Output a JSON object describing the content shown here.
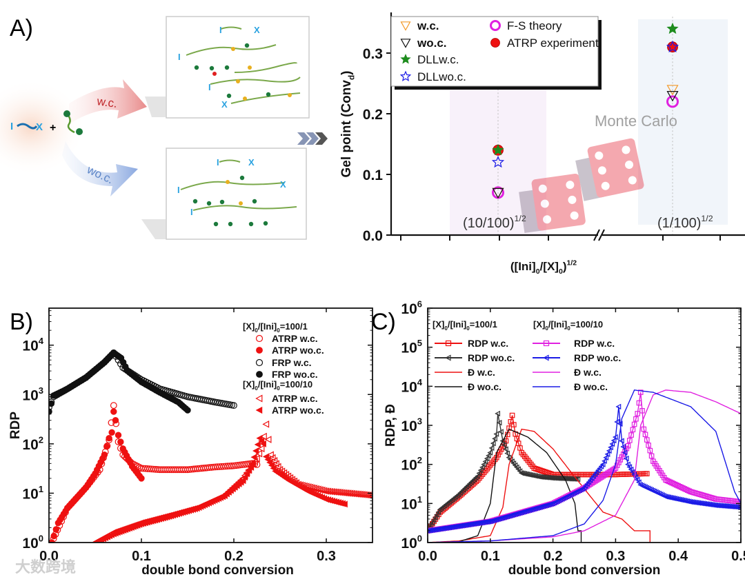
{
  "panel_labels": {
    "a": "A)",
    "b": "B)",
    "c": "C)"
  },
  "schematic": {
    "arrow_wc": "w.c.",
    "arrow_woc": "wo.c.",
    "initiator": "I",
    "halide": "X",
    "plus": "+"
  },
  "watermark": "大数跨境",
  "colors": {
    "red": "#ee1111",
    "black": "#111111",
    "magenta": "#e020e0",
    "blue": "#1a1ae6",
    "green": "#1e8c1e",
    "orange": "#f39a2a"
  },
  "chart_data": [
    {
      "id": "A",
      "type": "scatter",
      "title": "",
      "ylabel": "Gel point (Conv_{d})",
      "xlabel": "([Ini]_{0}/[X]_{0})^{1/2}",
      "categories": [
        "(10/100)^{1/2}",
        "(1/100)^{1/2}"
      ],
      "ylim": [
        0,
        0.36
      ],
      "yticks": [
        "0.0",
        "0.1",
        "0.2",
        "0.3"
      ],
      "ytick_values": [
        0,
        0.1,
        0.2,
        0.3
      ],
      "annotation": "Monte Carlo",
      "legend_placement": "top-left",
      "series": [
        {
          "name": "w.c.",
          "marker": "tri-down",
          "fill": "#f39a2a",
          "stroke": "#f39a2a",
          "open": true,
          "bold": true,
          "values": [
            0.07,
            0.24
          ]
        },
        {
          "name": "wo.c.",
          "marker": "tri-down",
          "fill": "#111111",
          "stroke": "#111111",
          "open": true,
          "bold": true,
          "values": [
            0.07,
            0.23
          ]
        },
        {
          "name": "DLLw.c.",
          "marker": "star",
          "fill": "#1e8c1e",
          "stroke": "#1e8c1e",
          "open": false,
          "bold": false,
          "values": [
            0.14,
            0.34
          ]
        },
        {
          "name": "DLLwo.c.",
          "marker": "star",
          "fill": "#1a1ae6",
          "stroke": "#1a1ae6",
          "open": true,
          "bold": false,
          "values": [
            0.12,
            0.31
          ]
        },
        {
          "name": "F-S theory",
          "marker": "circle",
          "fill": "#e020e0",
          "stroke": "#e020e0",
          "open": true,
          "bold": false,
          "values": [
            0.07,
            0.22
          ]
        },
        {
          "name": "ATRP experiment",
          "marker": "circle",
          "fill": "#ee1111",
          "stroke": "#aa0000",
          "open": false,
          "bold": false,
          "values": [
            0.14,
            0.31
          ]
        }
      ]
    },
    {
      "id": "B",
      "type": "scatter",
      "ylabel": "RDP",
      "xlabel": "double bond conversion",
      "xlim": [
        0,
        0.35
      ],
      "ylim_log10": [
        0,
        4.75
      ],
      "xticks": [
        "0.0",
        "0.1",
        "0.2",
        "0.3"
      ],
      "xtick_values": [
        0,
        0.1,
        0.2,
        0.3
      ],
      "yticks": [
        "10^{0}",
        "10^{1}",
        "10^{2}",
        "10^{3}",
        "10^{4}"
      ],
      "ytick_exponents": [
        0,
        1,
        2,
        3,
        4
      ],
      "legend_placement": "top-right",
      "legend_groups": [
        "[X]_{0}/[Ini]_{0}=100/1",
        "[X]_{0}/[Ini]_{0}=100/10"
      ],
      "series": [
        {
          "name": "ATRP w.c.",
          "group": 0,
          "marker": "circle",
          "color": "#ee1111",
          "open": true,
          "x": [
            0.005,
            0.02,
            0.04,
            0.055,
            0.065,
            0.07,
            0.075,
            0.08,
            0.09,
            0.1,
            0.12,
            0.15,
            0.18,
            0.2,
            0.22,
            0.225
          ],
          "y": [
            1.2,
            5,
            13,
            30,
            120,
            600,
            110,
            60,
            40,
            32,
            30,
            30,
            34,
            36,
            40,
            38
          ]
        },
        {
          "name": "ATRP wo.c.",
          "group": 0,
          "marker": "circle",
          "color": "#ee1111",
          "open": false,
          "x": [
            0.003,
            0.01,
            0.02,
            0.03,
            0.04,
            0.05,
            0.06,
            0.065,
            0.068,
            0.07,
            0.072,
            0.075,
            0.08,
            0.09,
            0.1
          ],
          "y": [
            1,
            2.5,
            5,
            8,
            13,
            25,
            60,
            130,
            170,
            450,
            300,
            150,
            80,
            35,
            20
          ]
        },
        {
          "name": "FRP w.c.",
          "group": 0,
          "marker": "circle",
          "color": "#111111",
          "open": true,
          "x": [
            0,
            0.005,
            0.02,
            0.04,
            0.06,
            0.07,
            0.075,
            0.08,
            0.1,
            0.12,
            0.15,
            0.18,
            0.2
          ],
          "y": [
            550,
            900,
            1300,
            2200,
            4500,
            7000,
            5000,
            3500,
            2000,
            1300,
            900,
            700,
            600
          ]
        },
        {
          "name": "FRP wo.c.",
          "group": 0,
          "marker": "circle",
          "color": "#111111",
          "open": false,
          "x": [
            0,
            0.005,
            0.02,
            0.04,
            0.06,
            0.07,
            0.078,
            0.085,
            0.1,
            0.12,
            0.14,
            0.15
          ],
          "y": [
            450,
            950,
            1300,
            2200,
            4500,
            7000,
            5500,
            3000,
            1800,
            1100,
            700,
            480
          ]
        },
        {
          "name": "ATRP w.c.",
          "group": 1,
          "marker": "tri-left",
          "color": "#ee1111",
          "open": true,
          "x": [
            0.05,
            0.07,
            0.1,
            0.13,
            0.16,
            0.19,
            0.21,
            0.225,
            0.23,
            0.235,
            0.24,
            0.25,
            0.27,
            0.3,
            0.35
          ],
          "y": [
            1,
            1.6,
            2.5,
            3.5,
            5,
            9,
            20,
            50,
            80,
            250,
            60,
            30,
            15,
            11,
            9
          ]
        },
        {
          "name": "ATRP wo.c.",
          "group": 1,
          "marker": "tri-left",
          "color": "#ee1111",
          "open": false,
          "x": [
            0.05,
            0.07,
            0.1,
            0.13,
            0.16,
            0.19,
            0.21,
            0.22,
            0.228,
            0.232,
            0.235,
            0.245,
            0.26,
            0.28,
            0.3,
            0.32
          ],
          "y": [
            1,
            1.5,
            2.4,
            3.4,
            5,
            9,
            18,
            40,
            130,
            100,
            55,
            28,
            18,
            11,
            7.5,
            6
          ]
        }
      ]
    },
    {
      "id": "C",
      "type": "line",
      "ylabel": "RDP, Đ",
      "xlabel": "double bond conversion",
      "xlim": [
        0,
        0.5
      ],
      "ylim_log10": [
        0,
        6
      ],
      "xticks": [
        "0.0",
        "0.1",
        "0.2",
        "0.3",
        "0.4",
        "0.5"
      ],
      "xtick_values": [
        0,
        0.1,
        0.2,
        0.3,
        0.4,
        0.5
      ],
      "yticks": [
        "10^{0}",
        "10^{1}",
        "10^{2}",
        "10^{3}",
        "10^{4}",
        "10^{5}",
        "10^{6}"
      ],
      "ytick_exponents": [
        0,
        1,
        2,
        3,
        4,
        5,
        6
      ],
      "legend_placement": "top-left",
      "legend_groups": [
        "[X]_{0}/[Ini]_{0}=100/1",
        "[X]_{0}/[Ini]_{0}=100/10"
      ],
      "series": [
        {
          "name": "RDP w.c.",
          "group": 0,
          "marker": "square",
          "color": "#ee1111",
          "x": [
            0,
            0.02,
            0.05,
            0.08,
            0.11,
            0.125,
            0.135,
            0.14,
            0.15,
            0.17,
            0.2,
            0.25,
            0.3,
            0.35
          ],
          "y": [
            2,
            6,
            15,
            40,
            150,
            400,
            1800,
            600,
            200,
            80,
            55,
            55,
            55,
            58
          ]
        },
        {
          "name": "RDP wo.c.",
          "group": 0,
          "marker": "tri-left",
          "color": "#333333",
          "x": [
            0,
            0.02,
            0.05,
            0.08,
            0.1,
            0.11,
            0.112,
            0.12,
            0.13,
            0.15,
            0.18,
            0.2,
            0.24
          ],
          "y": [
            2,
            7,
            17,
            50,
            200,
            600,
            2000,
            400,
            150,
            60,
            48,
            45,
            42
          ]
        },
        {
          "name": "Đ  w.c.",
          "group": 0,
          "marker": "none",
          "color": "#ee1111",
          "x": [
            0,
            0.05,
            0.1,
            0.12,
            0.13,
            0.15,
            0.17,
            0.2,
            0.23,
            0.26,
            0.28,
            0.31,
            0.33,
            0.355,
            0.355
          ],
          "y": [
            1,
            1.1,
            1.5,
            8,
            100,
            800,
            700,
            250,
            60,
            15,
            6,
            4,
            2,
            2,
            1
          ]
        },
        {
          "name": "Đ  wo.c.",
          "group": 0,
          "marker": "none",
          "color": "#111111",
          "x": [
            0,
            0.05,
            0.08,
            0.1,
            0.11,
            0.13,
            0.16,
            0.19,
            0.22,
            0.235,
            0.24,
            0.245,
            0.245
          ],
          "y": [
            1,
            1.05,
            1.5,
            10,
            200,
            800,
            500,
            200,
            40,
            10,
            2,
            2,
            1
          ]
        },
        {
          "name": "RDP w.c.",
          "group": 1,
          "marker": "square",
          "color": "#e020e0",
          "x": [
            0,
            0.1,
            0.2,
            0.25,
            0.3,
            0.32,
            0.335,
            0.34,
            0.345,
            0.36,
            0.38,
            0.42,
            0.46,
            0.5
          ],
          "y": [
            2,
            3.5,
            10,
            25,
            80,
            300,
            2000,
            7000,
            800,
            120,
            40,
            20,
            13,
            11
          ]
        },
        {
          "name": "RDP wo.c.",
          "group": 1,
          "marker": "tri-left",
          "color": "#1a1ae6",
          "x": [
            0,
            0.1,
            0.2,
            0.25,
            0.28,
            0.3,
            0.305,
            0.31,
            0.32,
            0.34,
            0.38,
            0.42,
            0.46,
            0.5
          ],
          "y": [
            2,
            3.5,
            10,
            25,
            100,
            500,
            3000,
            400,
            100,
            30,
            15,
            11,
            9,
            8
          ]
        },
        {
          "name": "Đ  w.c.",
          "group": 1,
          "marker": "none",
          "color": "#e020e0",
          "x": [
            0,
            0.1,
            0.2,
            0.25,
            0.3,
            0.33,
            0.34,
            0.36,
            0.38,
            0.42,
            0.46,
            0.5
          ],
          "y": [
            1,
            1.1,
            1.4,
            2,
            5,
            40,
            1000,
            6000,
            8000,
            7000,
            4000,
            2000
          ]
        },
        {
          "name": "Đ  wo.c.",
          "group": 1,
          "marker": "none",
          "color": "#1a1ae6",
          "x": [
            0,
            0.1,
            0.2,
            0.25,
            0.28,
            0.3,
            0.31,
            0.33,
            0.36,
            0.42,
            0.46,
            0.49,
            0.5
          ],
          "y": [
            1,
            1.1,
            1.5,
            3,
            12,
            100,
            1500,
            8000,
            7000,
            3000,
            700,
            20,
            10
          ]
        }
      ]
    }
  ]
}
